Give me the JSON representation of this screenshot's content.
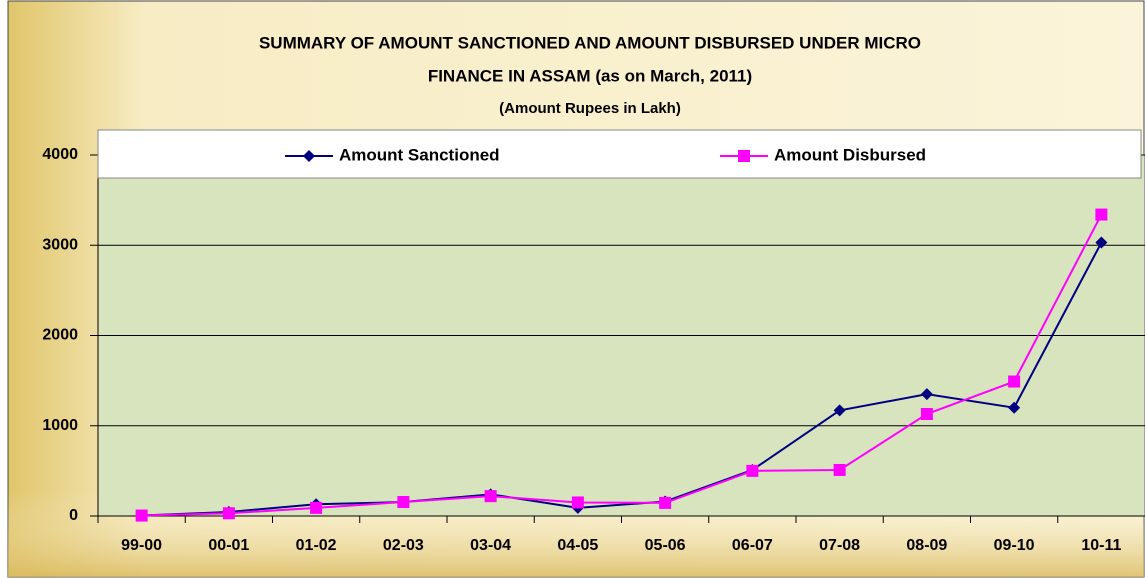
{
  "chart_data": {
    "type": "line",
    "title": [
      "SUMMARY OF AMOUNT SANCTIONED AND AMOUNT DISBURSED  UNDER MICRO",
      "FINANCE IN ASSAM (as on March, 2011)"
    ],
    "subtitle": "(Amount Rupees in Lakh)",
    "categories": [
      "99-00",
      "00-01",
      "01-02",
      "02-03",
      "03-04",
      "04-05",
      "05-06",
      "06-07",
      "07-08",
      "08-09",
      "09-10",
      "10-11"
    ],
    "series": [
      {
        "name": "Amount Sanctioned",
        "color": "#000080",
        "marker": "diamond",
        "values": [
          5,
          45,
          130,
          155,
          240,
          90,
          160,
          510,
          1170,
          1350,
          1200,
          3030
        ]
      },
      {
        "name": "Amount Disbursed",
        "color": "#ff00ff",
        "marker": "square",
        "values": [
          5,
          30,
          90,
          155,
          220,
          150,
          145,
          500,
          510,
          1130,
          1490,
          3340
        ]
      }
    ],
    "ylim": [
      0,
      4000
    ],
    "yticks": [
      0,
      1000,
      2000,
      3000,
      4000
    ],
    "grid": true,
    "legend": "top"
  }
}
